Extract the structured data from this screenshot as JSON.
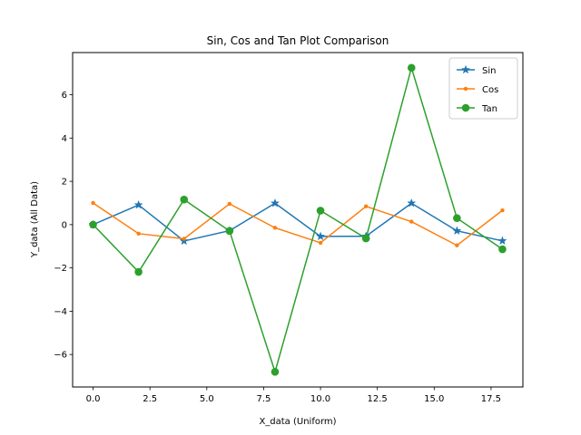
{
  "chart_data": {
    "type": "line",
    "title": "Sin, Cos and Tan Plot Comparison",
    "xlabel": "X_data (Uniform)",
    "ylabel": "Y_data (All Data)",
    "xlim": [
      -0.9,
      18.9
    ],
    "ylim": [
      -7.5,
      7.95
    ],
    "xticks": [
      0.0,
      2.5,
      5.0,
      7.5,
      10.0,
      12.5,
      15.0,
      17.5
    ],
    "xtick_labels": [
      "0.0",
      "2.5",
      "5.0",
      "7.5",
      "10.0",
      "12.5",
      "15.0",
      "17.5"
    ],
    "yticks": [
      -6,
      -4,
      -2,
      0,
      2,
      4,
      6
    ],
    "ytick_labels": [
      "−6",
      "−4",
      "−2",
      "0",
      "2",
      "4",
      "6"
    ],
    "x": [
      0,
      2,
      4,
      6,
      8,
      10,
      12,
      14,
      16,
      18
    ],
    "legend_position": "top-right",
    "series": [
      {
        "name": "Sin",
        "color": "#1f77b4",
        "marker": "star",
        "values": [
          0.0,
          0.909,
          -0.757,
          -0.279,
          0.989,
          -0.544,
          -0.537,
          0.991,
          -0.288,
          -0.751
        ]
      },
      {
        "name": "Cos",
        "color": "#ff7f0e",
        "marker": "point",
        "values": [
          1.0,
          -0.416,
          -0.654,
          0.96,
          -0.146,
          -0.839,
          0.844,
          0.137,
          -0.958,
          0.66
        ]
      },
      {
        "name": "Tan",
        "color": "#2ca02c",
        "marker": "circle",
        "values": [
          0.0,
          -2.185,
          1.158,
          -0.291,
          -6.8,
          0.648,
          -0.636,
          7.245,
          0.301,
          -1.137
        ]
      }
    ]
  }
}
